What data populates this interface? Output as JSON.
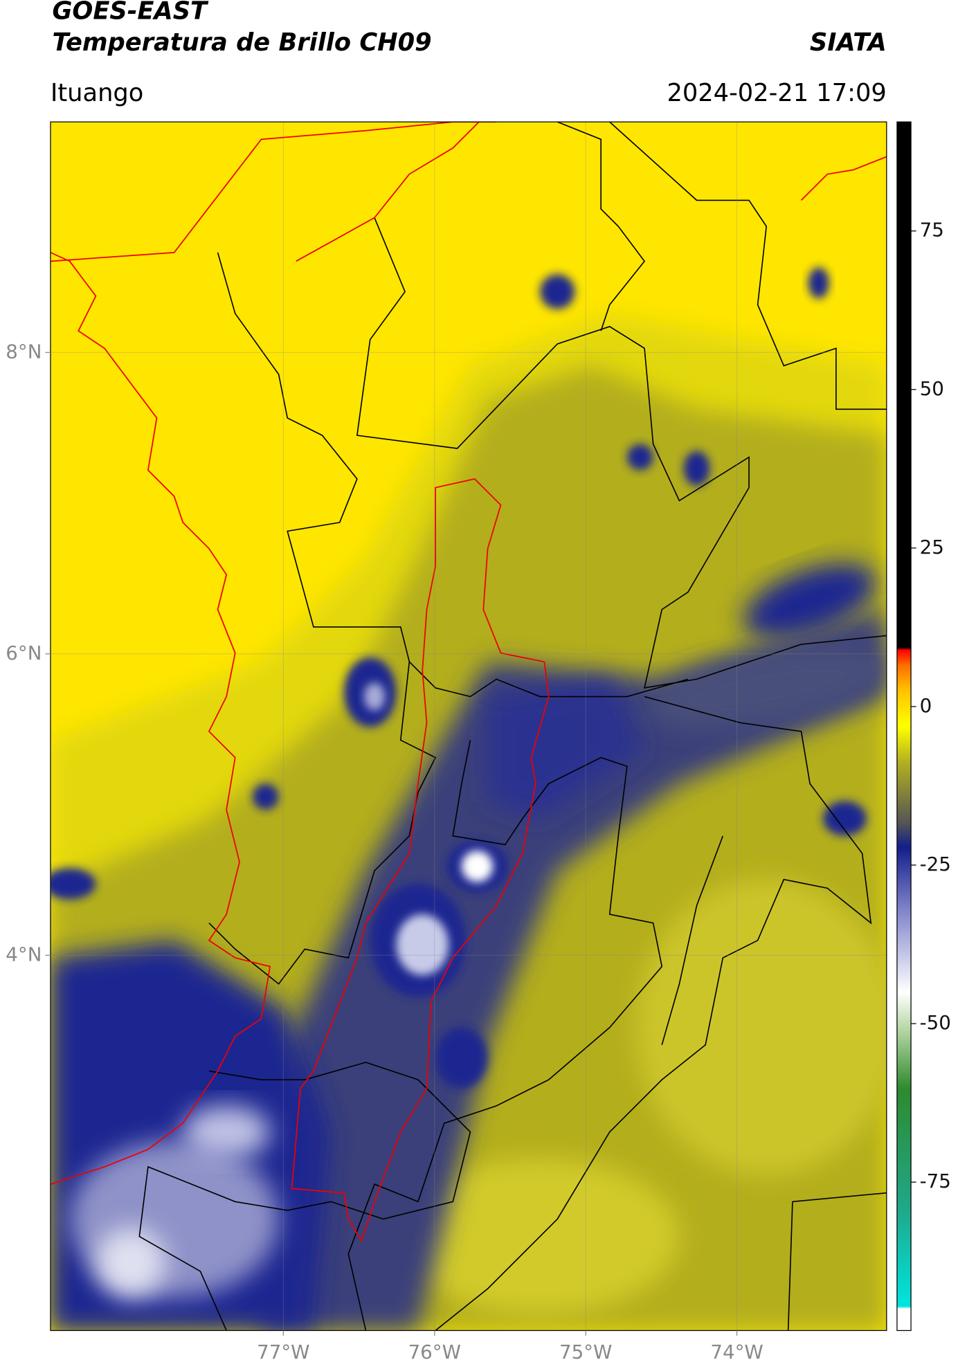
{
  "header": {
    "title": "GOES-EAST",
    "subtitle": "Temperatura de Brillo CH09",
    "credit": "SIATA",
    "location": "Ituango",
    "datetime": "2024-02-21 17:09"
  },
  "map": {
    "xlim": [
      -78.54,
      -73.01
    ],
    "ylim": [
      1.51,
      9.53
    ],
    "xticks": [
      {
        "value": -77,
        "label": "77°W"
      },
      {
        "value": -76,
        "label": "76°W"
      },
      {
        "value": -75,
        "label": "75°W"
      },
      {
        "value": -74,
        "label": "74°W"
      }
    ],
    "yticks": [
      {
        "value": 8,
        "label": "8°N"
      },
      {
        "value": 6,
        "label": "6°N"
      },
      {
        "value": 4,
        "label": "4°N"
      }
    ],
    "grid": true
  },
  "colorbar": {
    "lim": [
      -98.4,
      92.2
    ],
    "ticks": [
      75,
      50,
      25,
      0,
      -25,
      -50,
      -75
    ]
  }
}
